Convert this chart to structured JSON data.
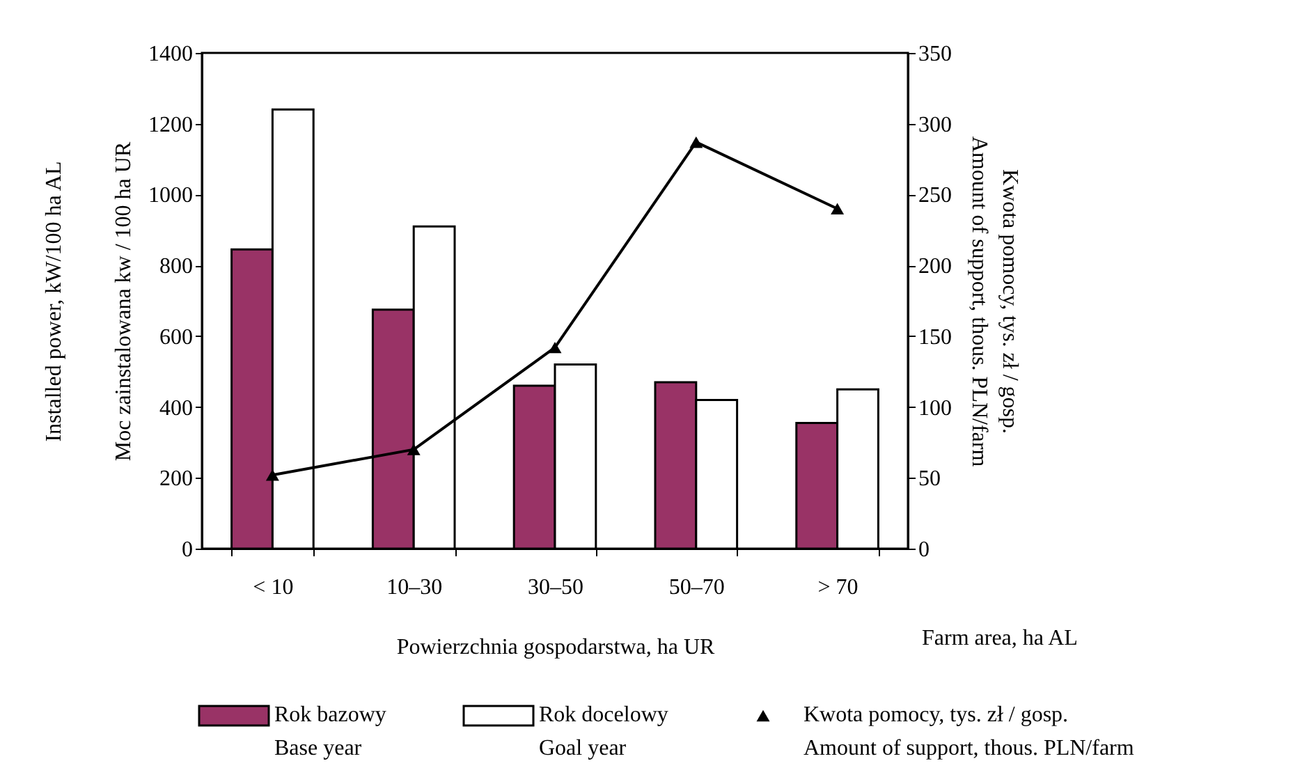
{
  "chart_data": {
    "type": "bar",
    "categories": [
      "< 10",
      "10–30",
      "30–50",
      "50–70",
      "> 70"
    ],
    "xlabel": "Powierzchnia gospodarstwa, ha UR",
    "ylabel": "Installed power, kW/100 ha AL\nMoc zainstalowana kw / 100 ha UR",
    "y2label": "Kwota pomocy, tys. zł / gosp.\nAmount of support, thous. PLN/farm",
    "annotations": [
      "Farm area, ha AL"
    ],
    "series": [
      {
        "name": "Rok bazowy\nBase year",
        "color": "#993366",
        "values": [
          845,
          675,
          460,
          470,
          355
        ]
      },
      {
        "name": "Rok docelowy\nGoal year",
        "color": "#ffffff",
        "values": [
          1240,
          910,
          520,
          420,
          450
        ]
      },
      {
        "name": "Kwota pomocy, tys. zł / gosp.\nAmount of support, thous. PLN/farm",
        "type": "line",
        "axis": "y2",
        "marker": "triangle",
        "color": "#000000",
        "values": [
          52,
          70,
          142,
          287,
          240
        ]
      }
    ],
    "ylim": [
      0,
      1400
    ],
    "yticks": [
      0,
      200,
      400,
      600,
      800,
      1000,
      1200,
      1400
    ],
    "y2lim": [
      0,
      350
    ],
    "y2ticks": [
      0,
      50,
      100,
      150,
      200,
      250,
      300,
      350
    ],
    "grid": false,
    "legend": "bottom"
  }
}
